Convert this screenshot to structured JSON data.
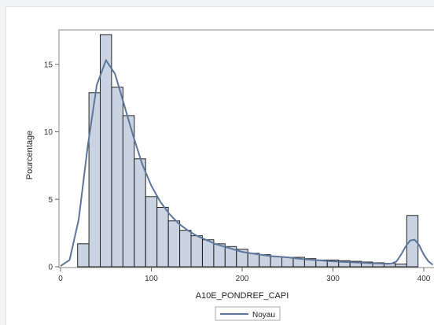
{
  "chart_data": {
    "type": "bar",
    "title": "",
    "xlabel": "A10E_PONDREF_CAPI",
    "ylabel": "Pourcentage",
    "xlim": [
      0,
      410
    ],
    "ylim": [
      0,
      17.4
    ],
    "x_ticks": [
      "0",
      "100",
      "200",
      "300",
      "400"
    ],
    "y_ticks": [
      "0",
      "5",
      "10",
      "15"
    ],
    "bin_width": 12.5,
    "bin_starts": [
      18.75,
      31.25,
      43.75,
      56.25,
      68.75,
      81.25,
      93.75,
      106.25,
      118.75,
      131.25,
      143.75,
      156.25,
      168.75,
      181.25,
      193.75,
      206.25,
      218.75,
      231.25,
      243.75,
      256.25,
      268.75,
      281.25,
      293.75,
      306.25,
      318.75,
      331.25,
      343.75,
      356.25,
      368.75,
      381.25
    ],
    "values": [
      1.7,
      12.9,
      17.2,
      13.3,
      11.2,
      8.0,
      5.2,
      4.4,
      3.4,
      2.7,
      2.3,
      2.0,
      1.7,
      1.5,
      1.3,
      1.0,
      0.9,
      0.75,
      0.7,
      0.7,
      0.6,
      0.5,
      0.5,
      0.45,
      0.4,
      0.35,
      0.3,
      0.25,
      0.2,
      3.8
    ],
    "kernel_density": {
      "name": "Noyau",
      "x": [
        0,
        10,
        20,
        30,
        40,
        50,
        60,
        70,
        80,
        90,
        100,
        110,
        120,
        130,
        140,
        150,
        160,
        170,
        180,
        190,
        200,
        210,
        220,
        230,
        240,
        250,
        260,
        270,
        280,
        290,
        300,
        310,
        320,
        330,
        340,
        350,
        360,
        365,
        370,
        375,
        380,
        385,
        390,
        395,
        400,
        405,
        410
      ],
      "y": [
        0.05,
        0.5,
        3.5,
        9.0,
        13.5,
        15.3,
        14.3,
        12.0,
        9.7,
        7.6,
        6.0,
        4.8,
        3.9,
        3.2,
        2.7,
        2.3,
        2.0,
        1.7,
        1.5,
        1.3,
        1.1,
        1.0,
        0.9,
        0.8,
        0.75,
        0.7,
        0.62,
        0.55,
        0.5,
        0.45,
        0.4,
        0.37,
        0.33,
        0.3,
        0.27,
        0.25,
        0.22,
        0.25,
        0.4,
        0.9,
        1.5,
        1.95,
        2.0,
        1.6,
        0.9,
        0.4,
        0.15
      ]
    },
    "legend": {
      "position": "bottom",
      "entries": [
        "Noyau"
      ]
    },
    "colors": {
      "bar_fill": "#c9d3e2",
      "bar_stroke": "#222222",
      "line": "#5d7699"
    },
    "grid": false
  }
}
